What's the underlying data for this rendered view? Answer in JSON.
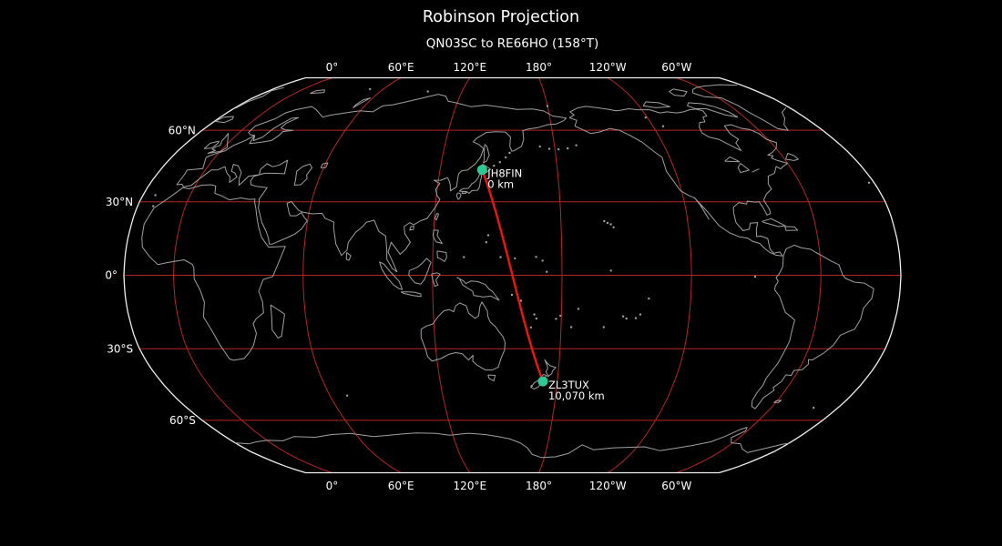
{
  "figure": {
    "title": "Robinson Projection",
    "subtitle": "QN03SC to RE66HO (158°T)"
  },
  "map": {
    "projection": "Robinson",
    "central_meridian_deg_east": 157,
    "colors": {
      "background": "#000000",
      "boundary": "#f0f0f0",
      "coastline": "#a0a0a0",
      "graticule": "#b52525",
      "route": "#f01414",
      "marker": "#2dc896",
      "text": "#ffffff"
    },
    "graticule": {
      "meridian_labels": [
        {
          "lon": 0,
          "label": "0°"
        },
        {
          "lon": 60,
          "label": "60°E"
        },
        {
          "lon": 120,
          "label": "120°E"
        },
        {
          "lon": 180,
          "label": "180°"
        },
        {
          "lon": -120,
          "label": "120°W"
        },
        {
          "lon": -60,
          "label": "60°W"
        }
      ],
      "parallel_labels": [
        {
          "lat": 60,
          "label": "60°N"
        },
        {
          "lat": 30,
          "label": "30°N"
        },
        {
          "lat": 0,
          "label": "0°"
        },
        {
          "lat": -30,
          "label": "30°S"
        },
        {
          "lat": -60,
          "label": "60°S"
        }
      ]
    }
  },
  "route": {
    "bearing_label": "158°T",
    "from": {
      "callsign": "JH8FIN",
      "grid_in_subtitle": "QN03SC",
      "lon": 141.54,
      "lat": 43.1,
      "distance_label": "0 km"
    },
    "to": {
      "callsign": "ZL3TUX",
      "grid_in_subtitle": "RE66HO",
      "lon": 172.63,
      "lat": -43.4,
      "distance_label": "10,070 km"
    }
  }
}
